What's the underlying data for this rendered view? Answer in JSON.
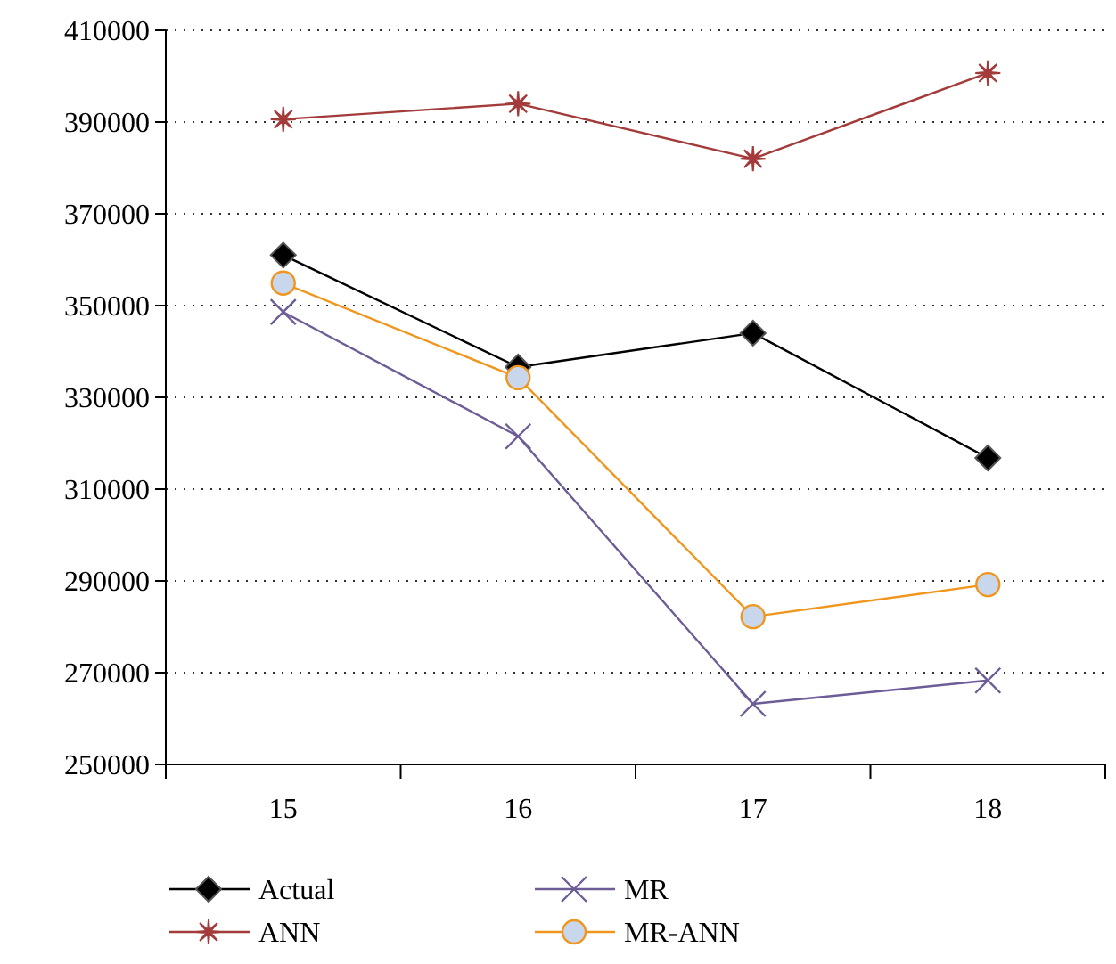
{
  "chart_data": {
    "type": "line",
    "categories": [
      "15",
      "16",
      "17",
      "18"
    ],
    "series": [
      {
        "name": "Actual",
        "color": "#000000",
        "marker": "diamond",
        "values": [
          361000,
          336600,
          344000,
          316800
        ]
      },
      {
        "name": "ANN",
        "color": "#a33b3b",
        "marker": "star",
        "values": [
          390600,
          394000,
          382000,
          400700
        ]
      },
      {
        "name": "MR",
        "color": "#6e5c96",
        "marker": "cross",
        "values": [
          348600,
          321500,
          263200,
          268300
        ]
      },
      {
        "name": "MR-ANN",
        "color": "#f0961e",
        "marker": "circle",
        "values": [
          354900,
          334300,
          282200,
          289200
        ]
      }
    ],
    "ylim": [
      250000,
      410000
    ],
    "yticks": [
      250000,
      270000,
      290000,
      310000,
      330000,
      350000,
      370000,
      390000,
      410000
    ],
    "grid": "y",
    "legend": "bottom"
  }
}
